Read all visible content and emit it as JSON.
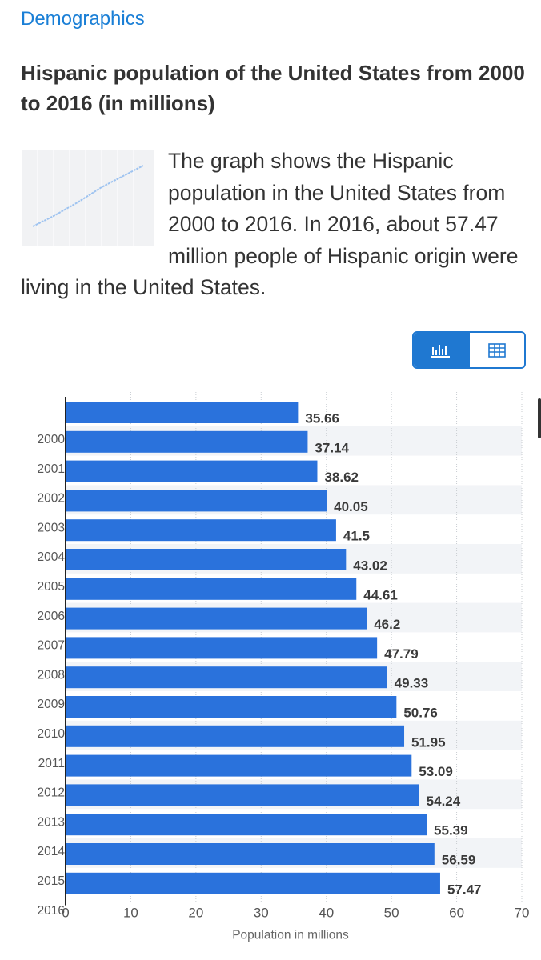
{
  "breadcrumb": "Demographics",
  "title": "Hispanic population of the United States from 2000 to 2016 (in millions)",
  "description": "The graph shows the Hispanic population in the United States from 2000 to 2016. In 2016, about 57.47 million people of Hispanic origin were living in the United States.",
  "toggle": {
    "chart_icon": "bar-chart-icon",
    "table_icon": "table-icon",
    "active": "chart"
  },
  "colors": {
    "bar": "#2a72dc",
    "accent": "#1f78d1",
    "stripe": "#f2f4f7"
  },
  "chart_data": {
    "type": "bar",
    "orientation": "horizontal",
    "categories": [
      "2000",
      "2001",
      "2002",
      "2003",
      "2004",
      "2005",
      "2006",
      "2007",
      "2008",
      "2009",
      "2010",
      "2011",
      "2012",
      "2013",
      "2014",
      "2015",
      "2016"
    ],
    "values": [
      35.66,
      37.14,
      38.62,
      40.05,
      41.5,
      43.02,
      44.61,
      46.2,
      47.79,
      49.33,
      50.76,
      51.95,
      53.09,
      54.24,
      55.39,
      56.59,
      57.47
    ],
    "xlabel": "Population in millions",
    "ylabel": "",
    "xlim": [
      0,
      70
    ],
    "xticks": [
      0,
      10,
      20,
      30,
      40,
      50,
      60,
      70
    ],
    "grid": true
  }
}
